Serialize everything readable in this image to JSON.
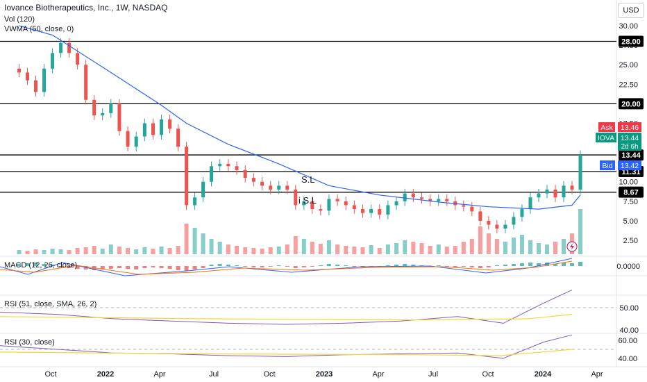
{
  "header": {
    "title": "Iovance Biotherapeutics, Inc., 1W, NASDAQ",
    "vol_label": "Vol (120)",
    "vwma_label": "VWMA (50, close, 0)",
    "macd_label": "MACD (12, 26, close)",
    "rsi1_label": "RSI (51, close, SMA, 26, 2)",
    "rsi2_label": "RSI (30, close)",
    "currency": "USD"
  },
  "colors": {
    "up": "#26a69a",
    "down": "#ef5350",
    "vwma": "#2962ff",
    "rsi_line": "#7e57c2",
    "rsi_ma": "#f5d637",
    "macd_line": "#2962ff",
    "signal_line": "#ff6d00",
    "level_line": "#000000",
    "ask_bg": "#f23645",
    "bid_bg": "#2962ff",
    "last_bg": "#089981",
    "level_bg": "#000000"
  },
  "chart_data": [
    {
      "type": "candlestick",
      "pane": "price",
      "x_tick_labels": [
        "Oct",
        "2022",
        "Apr",
        "Jul",
        "Oct",
        "2023",
        "Apr",
        "Jul",
        "Oct",
        "2024",
        "Apr"
      ],
      "x_ticks": [
        "2021-10-01",
        "2022-01-01",
        "2022-04-01",
        "2022-07-01",
        "2022-10-01",
        "2023-01-01",
        "2023-04-01",
        "2023-07-01",
        "2023-10-01",
        "2024-01-01",
        "2024-04-01"
      ],
      "y_axis": {
        "ticks": [
          2.5,
          5.0,
          7.5,
          10.0,
          12.5,
          15.0,
          17.5,
          20.0,
          22.5,
          25.0,
          27.5,
          30.0
        ]
      },
      "price_series": [
        [
          "2021-08-09",
          24.0
        ],
        [
          "2021-08-23",
          23.0
        ],
        [
          "2021-09-06",
          21.5
        ],
        [
          "2021-09-20",
          24.5
        ],
        [
          "2021-10-04",
          26.5
        ],
        [
          "2021-10-18",
          27.8
        ],
        [
          "2021-11-01",
          26.5
        ],
        [
          "2021-11-15",
          25.0
        ],
        [
          "2021-11-29",
          20.5
        ],
        [
          "2021-12-13",
          18.5
        ],
        [
          "2021-12-27",
          18.8
        ],
        [
          "2022-01-10",
          20.0
        ],
        [
          "2022-01-24",
          16.5
        ],
        [
          "2022-02-07",
          14.5
        ],
        [
          "2022-02-21",
          15.8
        ],
        [
          "2022-03-07",
          17.5
        ],
        [
          "2022-03-21",
          16.0
        ],
        [
          "2022-04-04",
          18.0
        ],
        [
          "2022-04-18",
          16.8
        ],
        [
          "2022-05-02",
          14.5
        ],
        [
          "2022-05-16",
          7.0
        ],
        [
          "2022-05-30",
          8.0
        ],
        [
          "2022-06-13",
          10.0
        ],
        [
          "2022-06-27",
          12.0
        ],
        [
          "2022-07-11",
          12.3
        ],
        [
          "2022-07-25",
          12.0
        ],
        [
          "2022-08-08",
          11.5
        ],
        [
          "2022-08-22",
          10.5
        ],
        [
          "2022-09-05",
          10.0
        ],
        [
          "2022-09-19",
          9.5
        ],
        [
          "2022-10-03",
          9.0
        ],
        [
          "2022-10-17",
          9.5
        ],
        [
          "2022-10-31",
          9.0
        ],
        [
          "2022-11-14",
          7.0
        ],
        [
          "2022-11-28",
          7.5
        ],
        [
          "2022-12-12",
          6.5
        ],
        [
          "2022-12-26",
          6.3
        ],
        [
          "2023-01-09",
          7.8
        ],
        [
          "2023-01-23",
          7.5
        ],
        [
          "2023-02-06",
          7.0
        ],
        [
          "2023-02-20",
          6.5
        ],
        [
          "2023-03-06",
          6.0
        ],
        [
          "2023-03-20",
          6.5
        ],
        [
          "2023-04-03",
          5.8
        ],
        [
          "2023-04-17",
          7.0
        ],
        [
          "2023-05-01",
          7.5
        ],
        [
          "2023-05-15",
          8.5
        ],
        [
          "2023-05-29",
          8.0
        ],
        [
          "2023-06-12",
          7.8
        ],
        [
          "2023-06-26",
          7.5
        ],
        [
          "2023-07-10",
          7.8
        ],
        [
          "2023-07-24",
          7.5
        ],
        [
          "2023-08-07",
          7.0
        ],
        [
          "2023-08-21",
          6.8
        ],
        [
          "2023-09-04",
          6.2
        ],
        [
          "2023-09-18",
          5.0
        ],
        [
          "2023-10-02",
          4.5
        ],
        [
          "2023-10-16",
          4.0
        ],
        [
          "2023-10-30",
          4.5
        ],
        [
          "2023-11-13",
          5.5
        ],
        [
          "2023-11-27",
          6.5
        ],
        [
          "2023-12-11",
          8.0
        ],
        [
          "2023-12-25",
          8.5
        ],
        [
          "2024-01-08",
          9.0
        ],
        [
          "2024-01-22",
          8.0
        ],
        [
          "2024-02-05",
          9.5
        ],
        [
          "2024-02-19",
          9.0
        ],
        [
          "2024-03-04",
          13.44
        ]
      ],
      "vwma_series": [
        [
          "2021-08-09",
          30.0
        ],
        [
          "2021-10-04",
          28.8
        ],
        [
          "2022-01-10",
          24.0
        ],
        [
          "2022-04-04",
          19.8
        ],
        [
          "2022-05-16",
          17.5
        ],
        [
          "2022-07-25",
          14.8
        ],
        [
          "2022-10-17",
          12.3
        ],
        [
          "2023-01-09",
          9.5
        ],
        [
          "2023-04-03",
          8.3
        ],
        [
          "2023-07-10",
          7.4
        ],
        [
          "2023-10-02",
          6.8
        ],
        [
          "2023-12-25",
          6.5
        ],
        [
          "2024-02-19",
          7.0
        ],
        [
          "2024-03-04",
          8.3
        ]
      ],
      "horizontal_levels": [
        28.0,
        20.0,
        13.44,
        11.31,
        8.67
      ],
      "annotations": [
        "S.L",
        "i S.L"
      ],
      "price_labels": [
        {
          "label": "Ask",
          "value": "13.46"
        },
        {
          "label": "IOVA",
          "value": "13.44",
          "sub": "2d 6h"
        },
        {
          "label": "Bid",
          "value": "13.42"
        }
      ],
      "level_labels": [
        "28.00",
        "20.00",
        "13.44",
        "11.31",
        "8.67"
      ]
    },
    {
      "type": "bar",
      "pane": "volume",
      "title": "Vol (120)",
      "note": "relative weekly volume, tallest spike at latest week"
    },
    {
      "type": "histogram",
      "pane": "macd",
      "title": "MACD (12, 26, close)",
      "y_axis": {
        "ticks": [
          0.0
        ],
        "tick_labels": [
          "0.0000"
        ]
      }
    },
    {
      "type": "line",
      "pane": "rsi",
      "title": "RSI (51, close, SMA, 26, 2)",
      "y_axis": {
        "ticks": [
          40,
          50
        ],
        "tick_labels": [
          "40.00",
          "50.00"
        ]
      },
      "rsi_series": [
        [
          0,
          48
        ],
        [
          10,
          47
        ],
        [
          20,
          45
        ],
        [
          30,
          44
        ],
        [
          40,
          43
        ],
        [
          50,
          42.5
        ],
        [
          60,
          43
        ],
        [
          70,
          44
        ],
        [
          80,
          46
        ],
        [
          88,
          43
        ],
        [
          95,
          52
        ],
        [
          100,
          58
        ]
      ]
    },
    {
      "type": "line",
      "pane": "rsi",
      "title": "RSI (30, close)",
      "y_axis": {
        "ticks": [
          40,
          60
        ],
        "tick_labels": [
          "40.00",
          "60.00"
        ]
      },
      "rsi_series": [
        [
          0,
          54
        ],
        [
          10,
          50
        ],
        [
          20,
          46
        ],
        [
          30,
          45
        ],
        [
          40,
          43
        ],
        [
          50,
          42
        ],
        [
          60,
          44
        ],
        [
          70,
          45
        ],
        [
          80,
          46
        ],
        [
          88,
          40
        ],
        [
          95,
          58
        ],
        [
          100,
          66
        ]
      ]
    }
  ]
}
